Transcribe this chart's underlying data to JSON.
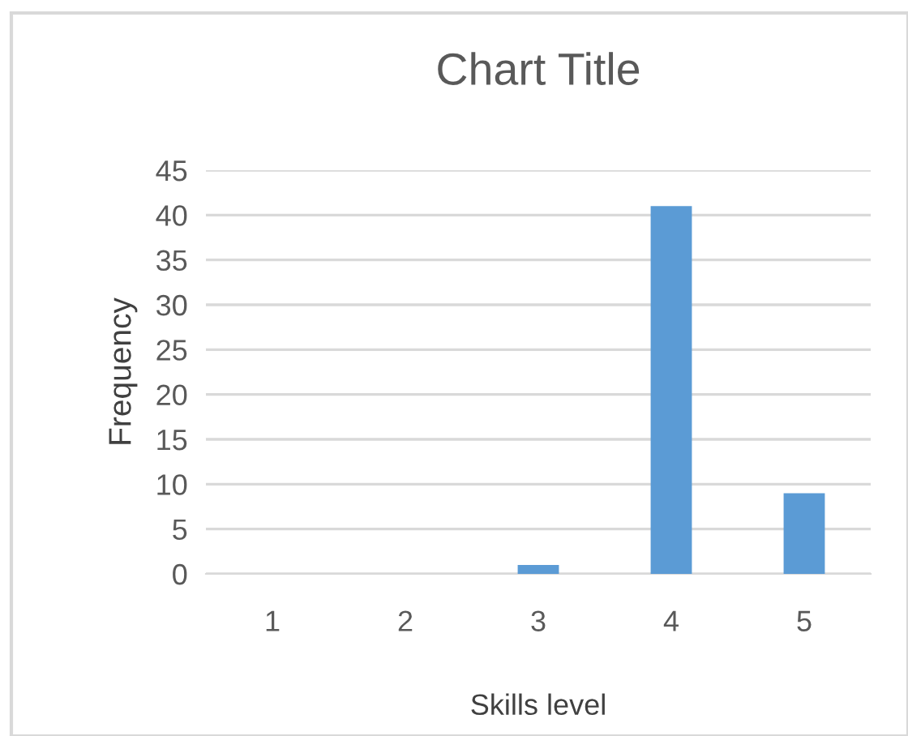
{
  "chart_data": {
    "type": "bar",
    "title": "Chart Title",
    "xlabel": "Skills level",
    "ylabel": "Frequency",
    "categories": [
      "1",
      "2",
      "3",
      "4",
      "5"
    ],
    "values": [
      0,
      0,
      1,
      41,
      9
    ],
    "color": "#5b9bd5",
    "ylim": [
      0,
      45
    ],
    "yticks": [
      0,
      5,
      10,
      15,
      20,
      25,
      30,
      35,
      40,
      45
    ],
    "grid": "y"
  }
}
